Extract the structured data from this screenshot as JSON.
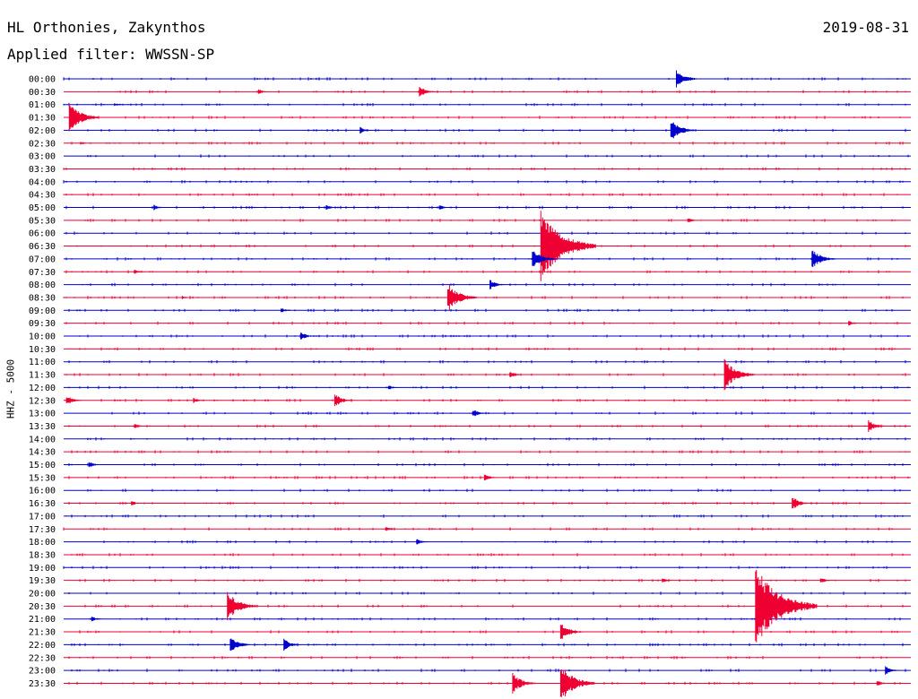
{
  "header": {
    "station": "HL Orthonies, Zakynthos",
    "date": "2019-08-31",
    "filter": "Applied filter: WWSSN-SP"
  },
  "channel_label": "HHZ - 5000",
  "colors": {
    "blue": "#0000cc",
    "red": "#ee0033"
  },
  "chart_data": {
    "type": "helicorder",
    "row_labels": [
      "00:00",
      "00:30",
      "01:00",
      "01:30",
      "02:00",
      "02:30",
      "03:00",
      "03:30",
      "04:00",
      "04:30",
      "05:00",
      "05:30",
      "06:00",
      "06:30",
      "07:00",
      "07:30",
      "08:00",
      "08:30",
      "09:00",
      "09:30",
      "10:00",
      "10:30",
      "11:00",
      "11:30",
      "12:00",
      "12:30",
      "13:00",
      "13:30",
      "14:00",
      "14:30",
      "15:00",
      "15:30",
      "16:00",
      "16:30",
      "17:00",
      "17:30",
      "18:00",
      "18:30",
      "19:00",
      "19:30",
      "20:00",
      "20:30",
      "21:00",
      "21:30",
      "22:00",
      "22:30",
      "23:00",
      "23:30"
    ],
    "row_colors": [
      "blue",
      "red",
      "blue",
      "red",
      "blue",
      "red",
      "blue",
      "red",
      "blue",
      "red",
      "blue",
      "red",
      "blue",
      "red",
      "blue",
      "red",
      "blue",
      "red",
      "blue",
      "red",
      "blue",
      "red",
      "blue",
      "red",
      "blue",
      "red",
      "blue",
      "red",
      "blue",
      "red",
      "blue",
      "red",
      "blue",
      "red",
      "blue",
      "red",
      "blue",
      "red",
      "blue",
      "red",
      "blue",
      "red",
      "blue",
      "red",
      "blue",
      "red",
      "blue",
      "red"
    ],
    "minutes_per_row": 30,
    "events": [
      {
        "row": 0,
        "minute": 21.7,
        "amp": 11
      },
      {
        "row": 1,
        "minute": 6.9,
        "amp": 3
      },
      {
        "row": 1,
        "minute": 12.6,
        "amp": 7
      },
      {
        "row": 2,
        "minute": 1.8,
        "amp": 2
      },
      {
        "row": 3,
        "minute": 0.2,
        "amp": 18
      },
      {
        "row": 4,
        "minute": 10.5,
        "amp": 4
      },
      {
        "row": 4,
        "minute": 21.5,
        "amp": 13
      },
      {
        "row": 5,
        "minute": 0.6,
        "amp": 2
      },
      {
        "row": 10,
        "minute": 3.2,
        "amp": 3
      },
      {
        "row": 10,
        "minute": 9.3,
        "amp": 3
      },
      {
        "row": 10,
        "minute": 13.3,
        "amp": 3
      },
      {
        "row": 11,
        "minute": 22.1,
        "amp": 3
      },
      {
        "row": 13,
        "minute": 16.9,
        "amp": 40
      },
      {
        "row": 14,
        "minute": 16.6,
        "amp": 12
      },
      {
        "row": 14,
        "minute": 26.5,
        "amp": 12
      },
      {
        "row": 15,
        "minute": 2.5,
        "amp": 3
      },
      {
        "row": 16,
        "minute": 15.1,
        "amp": 6
      },
      {
        "row": 17,
        "minute": 13.6,
        "amp": 17
      },
      {
        "row": 17,
        "minute": 4.2,
        "amp": 2
      },
      {
        "row": 18,
        "minute": 7.7,
        "amp": 3
      },
      {
        "row": 19,
        "minute": 27.8,
        "amp": 3
      },
      {
        "row": 20,
        "minute": 8.4,
        "amp": 5
      },
      {
        "row": 23,
        "minute": 23.4,
        "amp": 18
      },
      {
        "row": 23,
        "minute": 15.8,
        "amp": 4
      },
      {
        "row": 24,
        "minute": 11.5,
        "amp": 3
      },
      {
        "row": 25,
        "minute": 0.1,
        "amp": 6
      },
      {
        "row": 25,
        "minute": 4.6,
        "amp": 3
      },
      {
        "row": 25,
        "minute": 9.6,
        "amp": 8
      },
      {
        "row": 26,
        "minute": 14.5,
        "amp": 5
      },
      {
        "row": 27,
        "minute": 2.5,
        "amp": 3
      },
      {
        "row": 27,
        "minute": 28.5,
        "amp": 7
      },
      {
        "row": 30,
        "minute": 0.9,
        "amp": 4
      },
      {
        "row": 31,
        "minute": 14.9,
        "amp": 4
      },
      {
        "row": 33,
        "minute": 2.4,
        "amp": 3
      },
      {
        "row": 33,
        "minute": 25.8,
        "amp": 8
      },
      {
        "row": 35,
        "minute": 11.4,
        "amp": 3
      },
      {
        "row": 36,
        "minute": 12.5,
        "amp": 4
      },
      {
        "row": 39,
        "minute": 21.2,
        "amp": 3
      },
      {
        "row": 39,
        "minute": 26.8,
        "amp": 4
      },
      {
        "row": 41,
        "minute": 5.8,
        "amp": 17
      },
      {
        "row": 41,
        "minute": 24.5,
        "amp": 45
      },
      {
        "row": 42,
        "minute": 1.0,
        "amp": 3
      },
      {
        "row": 43,
        "minute": 17.6,
        "amp": 11
      },
      {
        "row": 44,
        "minute": 5.9,
        "amp": 10
      },
      {
        "row": 44,
        "minute": 7.8,
        "amp": 7
      },
      {
        "row": 46,
        "minute": 29.1,
        "amp": 5
      },
      {
        "row": 47,
        "minute": 15.9,
        "amp": 12
      },
      {
        "row": 47,
        "minute": 17.6,
        "amp": 22
      },
      {
        "row": 47,
        "minute": 28.8,
        "amp": 4
      }
    ]
  }
}
